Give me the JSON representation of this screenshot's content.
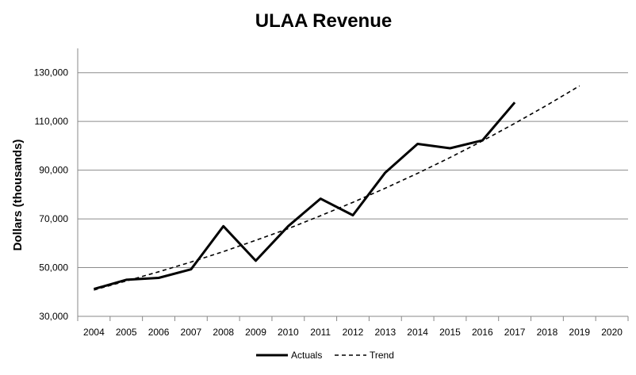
{
  "chart_data": {
    "type": "line",
    "title": "ULAA Revenue",
    "xlabel": "",
    "ylabel": "Dollars (thousands)",
    "x": [
      "2004",
      "2005",
      "2006",
      "2007",
      "2008",
      "2009",
      "2010",
      "2011",
      "2012",
      "2013",
      "2014",
      "2015",
      "2016",
      "2017",
      "2018",
      "2019",
      "2020"
    ],
    "ylim": [
      30000,
      140000
    ],
    "yticks": [
      "30,000",
      "50,000",
      "70,000",
      "90,000",
      "110,000",
      "130,000"
    ],
    "grid": "horizontal",
    "legend_position": "bottom",
    "series": [
      {
        "name": "Actuals",
        "style": "solid",
        "color": "#000000",
        "x": [
          "2004",
          "2005",
          "2006",
          "2007",
          "2008",
          "2009",
          "2010",
          "2011",
          "2012",
          "2013",
          "2014",
          "2015",
          "2016",
          "2017"
        ],
        "values": [
          41200,
          45000,
          45800,
          49300,
          67000,
          52800,
          67000,
          78300,
          71500,
          89000,
          100800,
          99000,
          102200,
          117800
        ]
      },
      {
        "name": "Trend",
        "style": "dashed",
        "color": "#000000",
        "x": [
          "2004",
          "2005",
          "2006",
          "2007",
          "2008",
          "2009",
          "2010",
          "2011",
          "2012",
          "2013",
          "2014",
          "2015",
          "2016",
          "2017",
          "2018",
          "2019"
        ],
        "values": [
          40800,
          44500,
          48300,
          52300,
          56600,
          61200,
          66000,
          71300,
          76800,
          82600,
          88700,
          95200,
          102000,
          109200,
          116700,
          124600
        ]
      }
    ]
  }
}
